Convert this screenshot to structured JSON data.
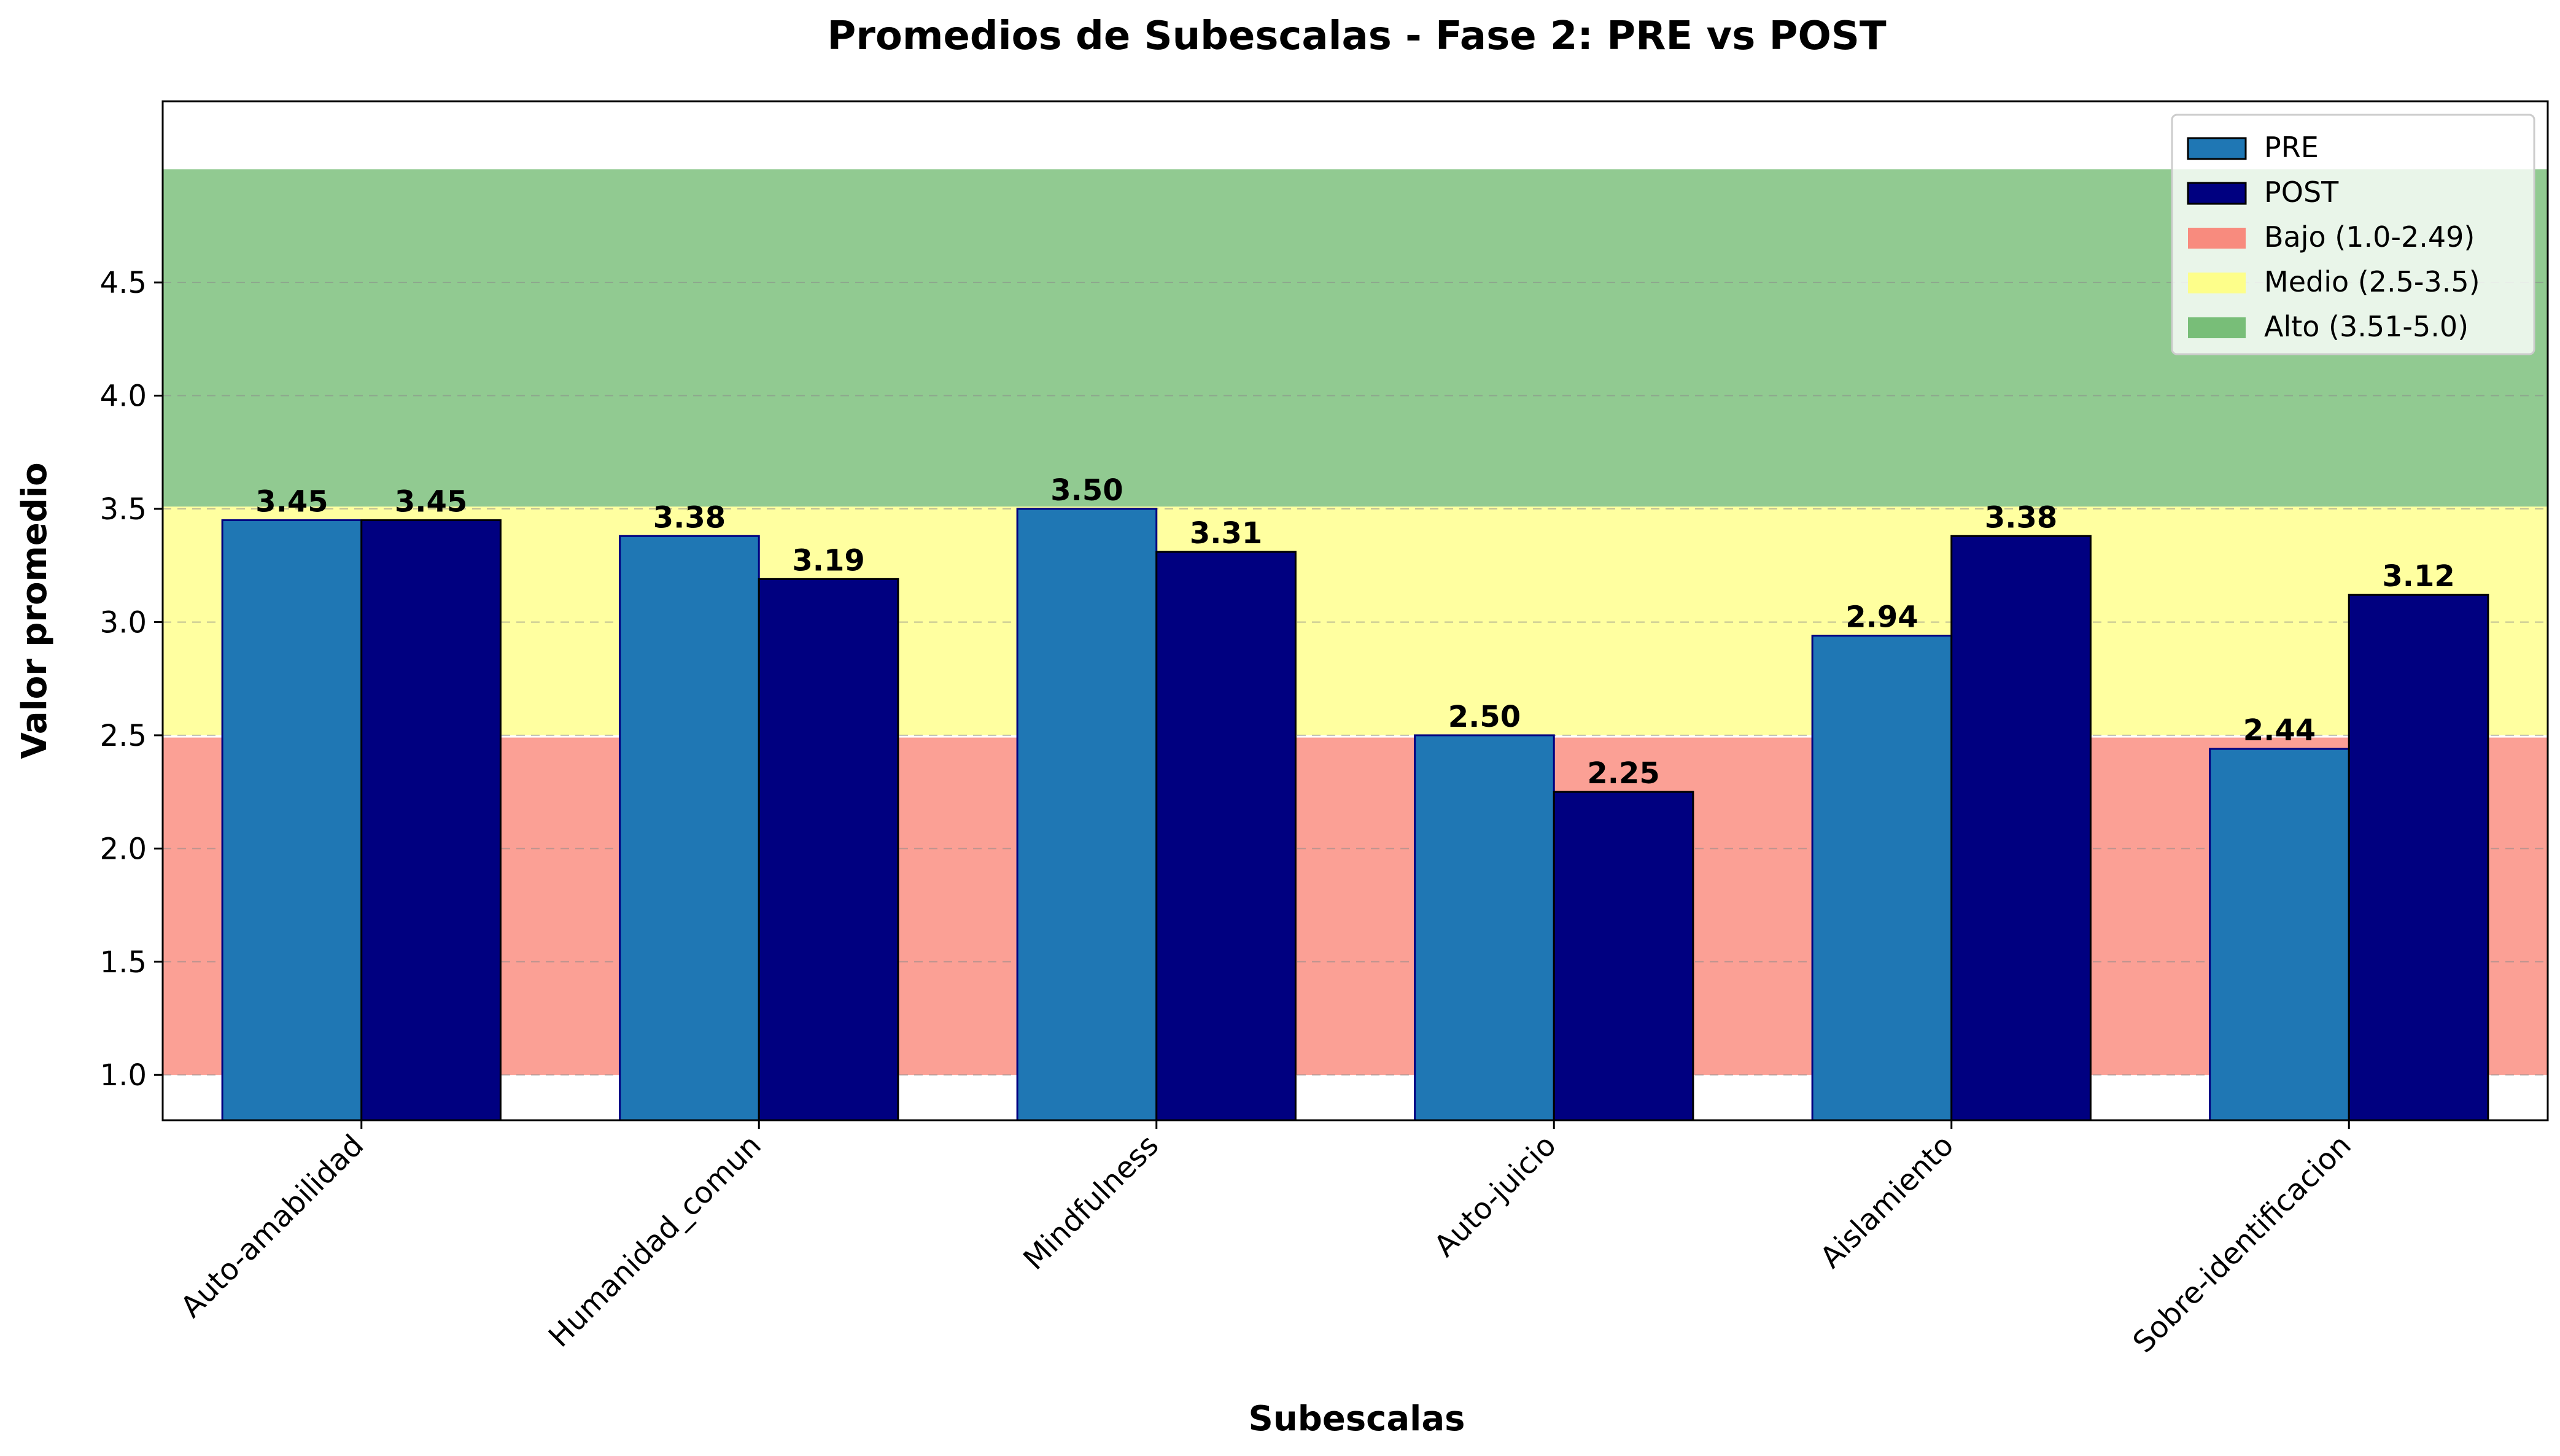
{
  "chart_data": {
    "type": "bar",
    "title": "Promedios de Subescalas - Fase 2: PRE vs POST",
    "xlabel": "Subescalas",
    "ylabel": "Valor promedio",
    "ylim": [
      0.8,
      5.3
    ],
    "yticks": [
      "1.0",
      "1.5",
      "2.0",
      "2.5",
      "3.0",
      "3.5",
      "4.0",
      "4.5"
    ],
    "grid": "y, dashed",
    "legend_position": "top-right",
    "categories": [
      "Auto-amabilidad",
      "Humanidad_comun",
      "Mindfulness",
      "Auto-juicio",
      "Aislamiento",
      "Sobre-identificacion"
    ],
    "series": [
      {
        "name": "PRE",
        "color": "#1f77b4",
        "values": [
          3.45,
          3.38,
          3.5,
          2.5,
          2.94,
          2.44
        ],
        "labels": [
          "3.45",
          "3.38",
          "3.50",
          "2.50",
          "2.94",
          "2.44"
        ]
      },
      {
        "name": "POST",
        "color": "#000080",
        "values": [
          3.45,
          3.19,
          3.31,
          2.25,
          3.38,
          3.12
        ],
        "labels": [
          "3.45",
          "3.19",
          "3.31",
          "2.25",
          "3.38",
          "3.12"
        ]
      }
    ],
    "bands": [
      {
        "name": "Bajo (1.0-2.49)",
        "from": 1.0,
        "to": 2.49,
        "color": "#fa8072"
      },
      {
        "name": "Medio (2.5-3.5)",
        "from": 2.5,
        "to": 3.51,
        "color": "#ffff80"
      },
      {
        "name": "Alto (3.51-5.0)",
        "from": 3.51,
        "to": 5.0,
        "color": "#6cb86c"
      }
    ]
  }
}
